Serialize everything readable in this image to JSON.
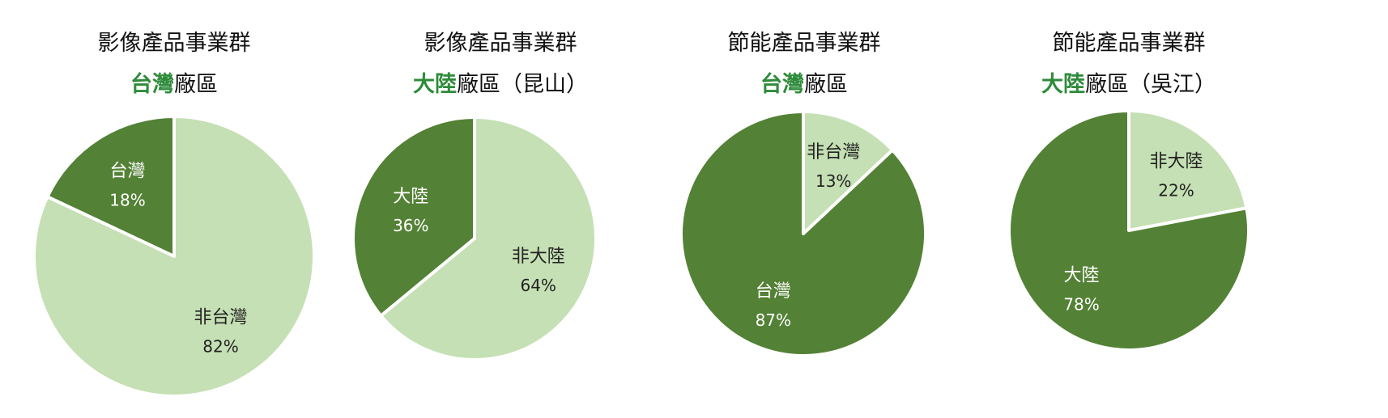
{
  "colors": {
    "dark": "#538135",
    "light": "#c5e0b4",
    "highlight": "#2e8b3a",
    "label_on_dark": "#ffffff",
    "label_on_light": "#222222"
  },
  "chart_data": [
    {
      "type": "pie",
      "title_line1": "影像產品事業群",
      "title_highlight": "台灣",
      "title_rest": "廠區",
      "slices": [
        {
          "label": "台灣",
          "pct_text": "18%",
          "value": 18,
          "shade": "dark"
        },
        {
          "label": "非台灣",
          "pct_text": "82%",
          "value": 82,
          "shade": "light"
        }
      ]
    },
    {
      "type": "pie",
      "title_line1": "影像產品事業群",
      "title_highlight": "大陸",
      "title_rest": "廠區（昆山）",
      "slices": [
        {
          "label": "大陸",
          "pct_text": "36%",
          "value": 36,
          "shade": "dark"
        },
        {
          "label": "非大陸",
          "pct_text": "64%",
          "value": 64,
          "shade": "light"
        }
      ]
    },
    {
      "type": "pie",
      "title_line1": "節能產品事業群",
      "title_highlight": "台灣",
      "title_rest": "廠區",
      "slices": [
        {
          "label": "非台灣",
          "pct_text": "13%",
          "value": 13,
          "shade": "light"
        },
        {
          "label": "台灣",
          "pct_text": "87%",
          "value": 87,
          "shade": "dark"
        }
      ]
    },
    {
      "type": "pie",
      "title_line1": "節能產品事業群",
      "title_highlight": "大陸",
      "title_rest": "廠區（吳江）",
      "slices": [
        {
          "label": "非大陸",
          "pct_text": "22%",
          "value": 22,
          "shade": "light"
        },
        {
          "label": "大陸",
          "pct_text": "78%",
          "value": 78,
          "shade": "dark"
        }
      ]
    }
  ]
}
